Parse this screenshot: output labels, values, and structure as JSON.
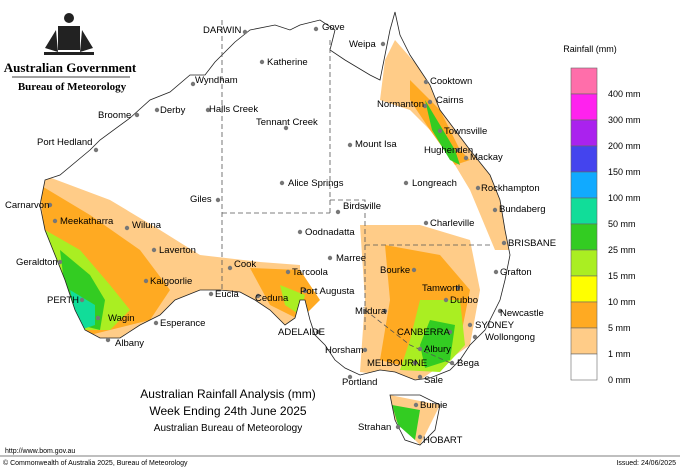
{
  "header": {
    "government": "Australian Government",
    "bureau": "Bureau of Meteorology"
  },
  "legend": {
    "title": "Rainfall (mm)",
    "colors": [
      "#ff6eaa",
      "#ff22ee",
      "#aa22ee",
      "#4444ee",
      "#11aaff",
      "#11dd99",
      "#33cc22",
      "#aaee22",
      "#ffff00",
      "#ffaa22",
      "#ffcc88",
      "#ffffff"
    ],
    "labels": [
      "400 mm",
      "300 mm",
      "200 mm",
      "150 mm",
      "100 mm",
      "50 mm",
      "25 mm",
      "15 mm",
      "10 mm",
      "5 mm",
      "1 mm",
      "0 mm"
    ]
  },
  "cities": [
    "DARWIN",
    "Gove",
    "Weipa",
    "Katherine",
    "Wyndham",
    "Cooktown",
    "Cairns",
    "Normanton",
    "Broome",
    "Derby",
    "Halls Creek",
    "Tennant Creek",
    "Townsville",
    "Port Hedland",
    "Mount Isa",
    "Hughenden",
    "Mackay",
    "Alice Springs",
    "Longreach",
    "Rockhampton",
    "Carnarvon",
    "Giles",
    "Birdsville",
    "Bundaberg",
    "Meekatharra",
    "Wiluna",
    "Charleville",
    "Oodnadatta",
    "BRISBANE",
    "Laverton",
    "Geraldton",
    "Cook",
    "Marree",
    "Bourke",
    "Grafton",
    "Tarcoola",
    "Kalgoorlie",
    "Tamworth",
    "Port Augusta",
    "Eucla",
    "Ceduna",
    "PERTH",
    "Dubbo",
    "Newcastle",
    "Mildura",
    "Wagin",
    "Esperance",
    "SYDNEY",
    "ADELAIDE",
    "CANBERRA",
    "Wollongong",
    "Albany",
    "Horsham",
    "Albury",
    "MELBOURNE",
    "Bega",
    "Portland",
    "Sale",
    "Burnie",
    "Strahan",
    "HOBART"
  ],
  "title": {
    "line1": "Australian Rainfall Analysis (mm)",
    "line2": "Week Ending 24th June 2025",
    "line3": "Australian Bureau of Meteorology"
  },
  "footer": {
    "url": "http://www.bom.gov.au",
    "copyright": "© Commonwealth of Australia 2025, Bureau of Meteorology",
    "issued": "Issued: 24/06/2025"
  }
}
